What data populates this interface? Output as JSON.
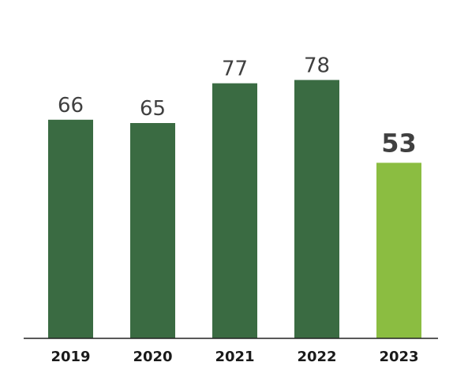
{
  "chart_data": {
    "type": "bar",
    "title": "",
    "xlabel": "",
    "ylabel": "",
    "categories": [
      "2019",
      "2020",
      "2021",
      "2022",
      "2023"
    ],
    "values": [
      66,
      65,
      77,
      78,
      53
    ],
    "ylim": [
      0,
      100
    ],
    "grid": false,
    "legend": "none",
    "colors": {
      "default_bar": "#3a6b42",
      "highlight_bar": "#8bbd41",
      "highlight_label": "#14503a",
      "label": "#404040",
      "axis": "#222222"
    },
    "highlight_index": 4
  }
}
